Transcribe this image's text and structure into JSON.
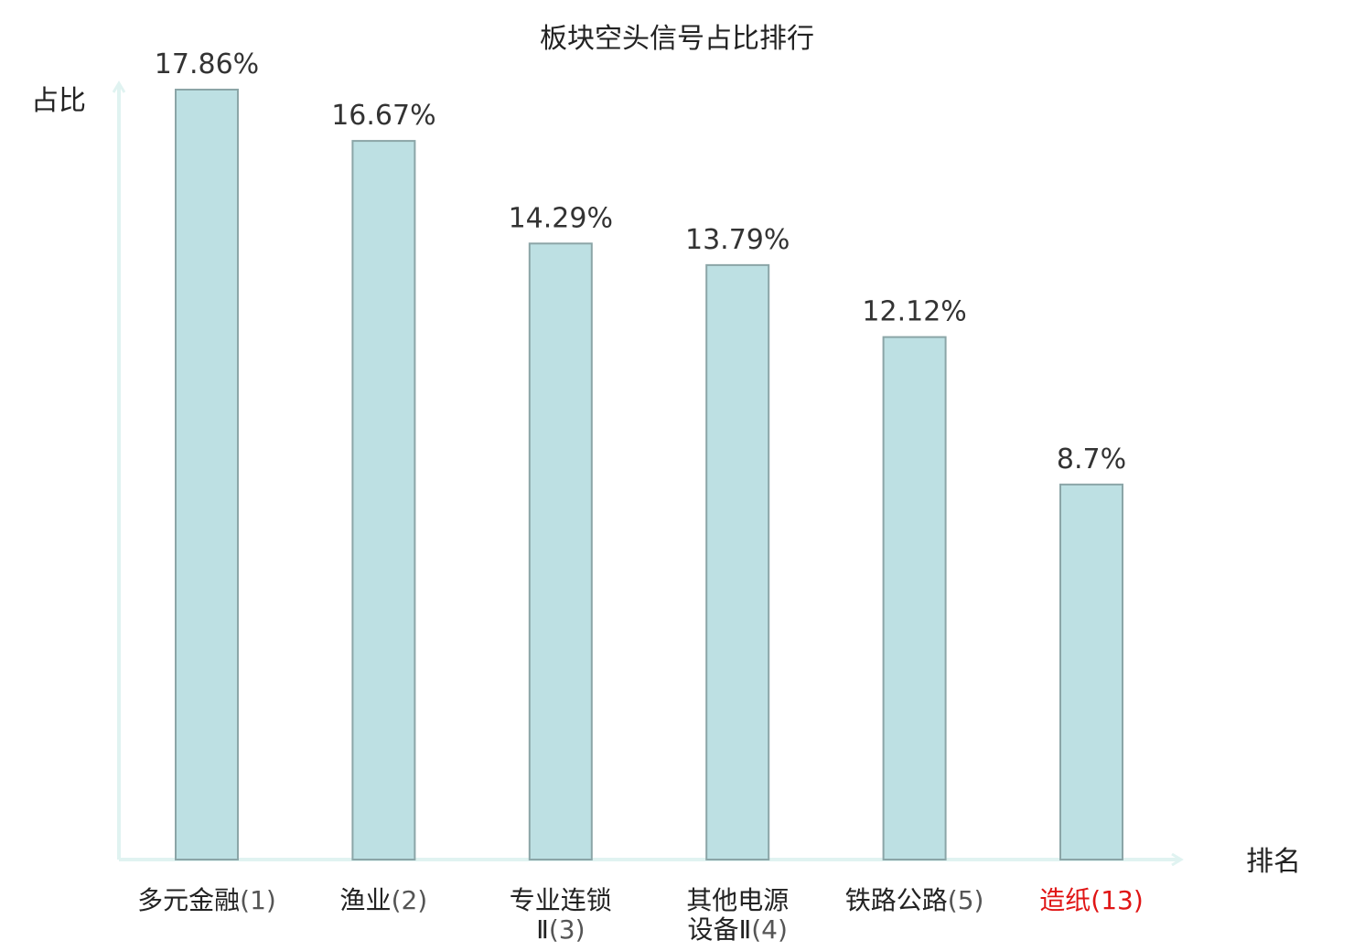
{
  "chart_data": {
    "type": "bar",
    "title": "板块空头信号占比排行",
    "ylabel": "占比",
    "xlabel": "排名",
    "ylim": [
      0,
      18
    ],
    "grid": false,
    "colors": {
      "bar_fill": "#bde0e3",
      "bar_stroke": "#8ba5a7",
      "axis": "#e0f3f1",
      "highlight": "#e01515"
    },
    "categories": [
      {
        "lines": [
          "多元金融"
        ],
        "rank": "(1)",
        "highlight": false
      },
      {
        "lines": [
          "渔业"
        ],
        "rank": "(2)",
        "highlight": false
      },
      {
        "lines": [
          "专业连锁",
          "Ⅱ"
        ],
        "rank": "(3)",
        "highlight": false
      },
      {
        "lines": [
          "其他电源",
          "设备Ⅱ"
        ],
        "rank": "(4)",
        "highlight": false
      },
      {
        "lines": [
          "铁路公路"
        ],
        "rank": "(5)",
        "highlight": false
      },
      {
        "lines": [
          "造纸"
        ],
        "rank": "(13)",
        "highlight": true
      }
    ],
    "values": [
      17.86,
      16.67,
      14.29,
      13.79,
      12.12,
      8.7
    ],
    "value_labels": [
      "17.86%",
      "16.67%",
      "14.29%",
      "13.79%",
      "12.12%",
      "8.7%"
    ]
  }
}
